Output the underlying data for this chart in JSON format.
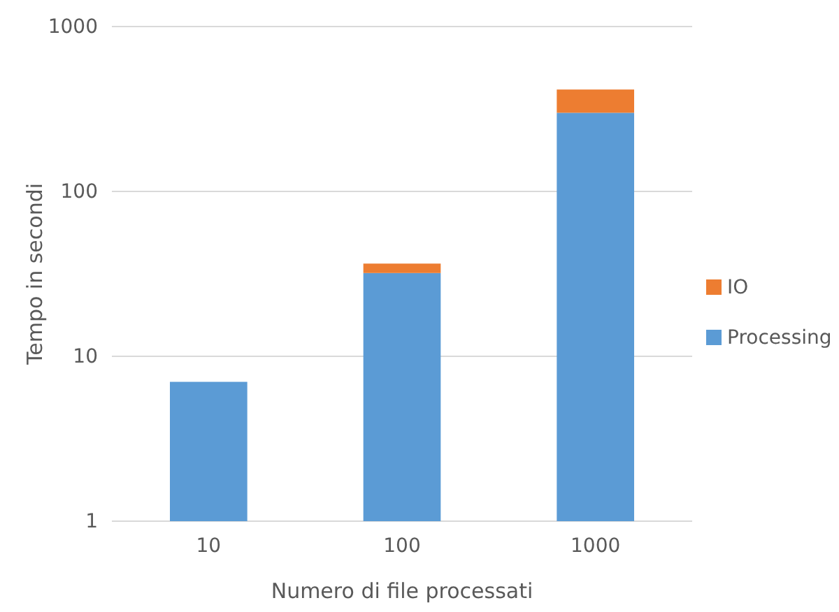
{
  "chart_data": {
    "type": "bar",
    "stacked": true,
    "log": true,
    "xlabel": "Numero di file processati",
    "ylabel": "Tempo in secondi",
    "categories": [
      "10",
      "100",
      "1000"
    ],
    "series": [
      {
        "name": "Processing",
        "color": "#5b9bd5",
        "values": [
          7,
          32,
          300
        ]
      },
      {
        "name": "IO",
        "color": "#ed7d31",
        "values": [
          null,
          4.5,
          115
        ]
      }
    ],
    "ylim": [
      1,
      1000
    ],
    "yticks": [
      1,
      10,
      100,
      1000
    ],
    "grid": "y",
    "legend": "right"
  }
}
